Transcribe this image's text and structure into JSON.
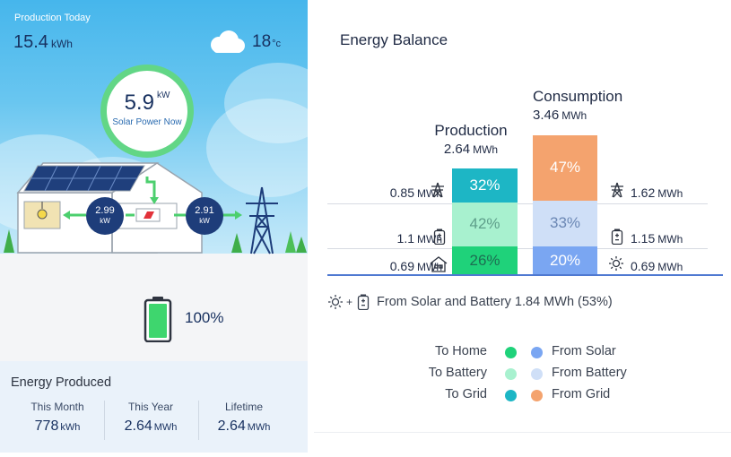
{
  "overview": {
    "production_today_label": "Production Today",
    "production_today_value": "15.4",
    "production_today_unit": "kWh",
    "weather_icon": "cloud-icon",
    "temperature_value": "18",
    "temperature_unit": "°c",
    "solar_now_value": "5.9",
    "solar_now_unit": "kW",
    "solar_now_label": "Solar Power Now",
    "home_consumption_value": "2.99",
    "home_consumption_unit": "kW",
    "grid_export_value": "2.91",
    "grid_export_unit": "kW",
    "battery_percent": "100%",
    "battery_level": 1.0
  },
  "energy_produced": {
    "title": "Energy Produced",
    "stats": [
      {
        "label": "This Month",
        "value": "778",
        "unit": "kWh"
      },
      {
        "label": "This Year",
        "value": "2.64",
        "unit": "MWh"
      },
      {
        "label": "Lifetime",
        "value": "2.64",
        "unit": "MWh"
      }
    ]
  },
  "energy_balance": {
    "title": "Energy Balance",
    "production": {
      "label": "Production",
      "value": "2.64",
      "unit": "MWh",
      "segments": [
        {
          "key": "to_grid",
          "percent": "32%",
          "share": 0.32,
          "value": "0.85",
          "unit": "MWh",
          "icon": "transmission-tower-icon"
        },
        {
          "key": "to_battery",
          "percent": "42%",
          "share": 0.42,
          "value": "1.1",
          "unit": "MWh",
          "icon": "battery-icon"
        },
        {
          "key": "to_home",
          "percent": "26%",
          "share": 0.26,
          "value": "0.69",
          "unit": "MWh",
          "icon": "home-icon"
        }
      ]
    },
    "consumption": {
      "label": "Consumption",
      "value": "3.46",
      "unit": "MWh",
      "segments": [
        {
          "key": "from_grid",
          "percent": "47%",
          "share": 0.47,
          "value": "1.62",
          "unit": "MWh",
          "icon": "transmission-tower-icon"
        },
        {
          "key": "from_battery",
          "percent": "33%",
          "share": 0.33,
          "value": "1.15",
          "unit": "MWh",
          "icon": "battery-icon"
        },
        {
          "key": "from_solar",
          "percent": "20%",
          "share": 0.2,
          "value": "0.69",
          "unit": "MWh",
          "icon": "sun-icon"
        }
      ]
    },
    "from_solar_and_battery": "From Solar and Battery 1.84 MWh (53%)",
    "legend": {
      "left": [
        {
          "label": "To Home",
          "color": "#1fd27a"
        },
        {
          "label": "To Battery",
          "color": "#a8f1cf"
        },
        {
          "label": "To Grid",
          "color": "#1db6c5"
        }
      ],
      "right": [
        {
          "label": "From Solar",
          "color": "#7aa6f2"
        },
        {
          "label": "From Battery",
          "color": "#cfdff7"
        },
        {
          "label": "From Grid",
          "color": "#f4a36e"
        }
      ]
    }
  }
}
